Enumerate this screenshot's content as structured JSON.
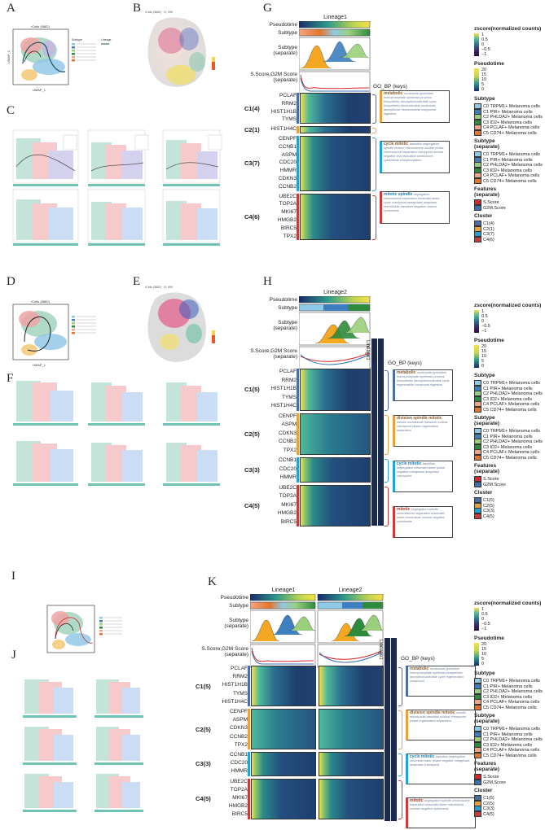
{
  "panels": {
    "A": "A",
    "B": "B",
    "C": "C",
    "D": "D",
    "E": "E",
    "F": "F",
    "G": "G",
    "H": "H",
    "I": "I",
    "J": "J",
    "K": "K"
  },
  "umap": {
    "xlabel": "UMAP_1",
    "ylabel": "UMAP_2",
    "title": "rCells (5882)",
    "subtype_title": "Subtype",
    "lineage_title": "Lineage"
  },
  "heatmap_common": {
    "pseudotime": "Pseudotime",
    "subtype": "Subtype",
    "subtype_sep": "Subtype\n(separate)",
    "score": "S.Score,G2M Score\n(separate)",
    "gobp": "GO_BP (keys)",
    "zscore_title": "zscore(normalized counts)",
    "zscore_ticks": [
      "1",
      "0.5",
      "0",
      "−0.5",
      "−1"
    ],
    "pt_title": "Pseudotime",
    "pt_ticks": [
      "20",
      "15",
      "10",
      "5",
      "0"
    ],
    "subtype_items": [
      "C0 TRPM1+ Melanoma cells",
      "C1 PIR+ Melanoma cells",
      "C2 PHLDA2+ Melanoma cells",
      "C3 ID2+ Melanoma cells",
      "C4 PCLAF+ Melanoma cells",
      "C5 CD74+ Melanoma cells"
    ],
    "subtype_colors": [
      "#8fc9e8",
      "#3e7fc0",
      "#9ad07c",
      "#2e8b3e",
      "#f4a582",
      "#e6742a"
    ],
    "subtype_sep_title": "Subtype\n(separate)",
    "features_title": "Features\n(separate)",
    "features_items": [
      "S.Score",
      "G2M.Score"
    ],
    "features_colors": [
      "#d6282c",
      "#3a6fb4"
    ],
    "cluster_title": "Cluster"
  },
  "G": {
    "lineage": "Lineage1",
    "clusters": [
      {
        "name": "C1(4)",
        "genes": [
          "PCLAF",
          "RRM2",
          "HIST1H1B",
          "TYMS"
        ],
        "color": "#4c6ea8"
      },
      {
        "name": "C2(1)",
        "genes": [
          "HIST1H4C"
        ],
        "color": "#e9a23b"
      },
      {
        "name": "C3(7)",
        "genes": [
          "CENPF",
          "CCNB1",
          "ASPM",
          "CDC20",
          "HMMR",
          "CDKN3",
          "CCNB2"
        ],
        "color": "#23a2d7"
      },
      {
        "name": "C4(6)",
        "genes": [
          "UBE2C",
          "TOP2A",
          "MKI67",
          "HMGB2",
          "BIRC5",
          "TPX2"
        ],
        "color": "#c93a3a"
      }
    ],
    "cluster_items": [
      "C1(4)",
      "C2(1)",
      "C3(7)",
      "C4(6)"
    ],
    "go": [
      {
        "key": "metabolic",
        "words": "nucleoside pyrimidine monophosphate synthesis process biosynthetic deoxyribonucleotide cycle biosynthetic ribonucleotide nucleoside deoxyribose ribonucleotide compound digestive"
      },
      {
        "key": "cycle mitotic",
        "words": "transition segregation spindle division chromosome nuclear phase chromosome separation checkpoint nuclear negative dna replication kinetochore cytokinesis phosphorylation"
      },
      {
        "key": "mitotic spindle",
        "words": "segregation chromosome separation chromatid sister cycle checkpoint metaphase anaphase microtubule transition negative nuclear cytokinesis"
      }
    ]
  },
  "H": {
    "lineage": "Lineage2",
    "side_labels": [
      "Lineage1",
      "Lineage2"
    ],
    "clusters": [
      {
        "name": "C1(5)",
        "genes": [
          "PCLAF",
          "RRM2",
          "HIST1H1B",
          "TYMS",
          "HIST1H4C"
        ],
        "color": "#4c6ea8"
      },
      {
        "name": "C2(5)",
        "genes": [
          "CENPF",
          "ASPM",
          "CDKN3",
          "CCNB2",
          "TPX2"
        ],
        "color": "#e9a23b"
      },
      {
        "name": "C3(3)",
        "genes": [
          "CCNB1",
          "CDC20",
          "HMMR"
        ],
        "color": "#23a2d7"
      },
      {
        "name": "C4(5)",
        "genes": [
          "UBE2C",
          "TOP2A",
          "MKI67",
          "HMGB2",
          "BIRC5"
        ],
        "color": "#c93a3a"
      }
    ],
    "cluster_items": [
      "C1(5)",
      "C2(5)",
      "C3(3)",
      "C4(5)"
    ],
    "go": [
      {
        "key": "metabolic",
        "words": "nucleoside pyrimidine monophosphate synthesis process biosynthetic deoxyribonucleotide cycle regeneration compound digestive"
      },
      {
        "key": "division spindle mitotic",
        "words": "meiotic microtubule transition nuclear checkpoint phase organization separation"
      },
      {
        "key": "cycle mitotic",
        "words": "transition segregation chromatid sister phase negative metaphase anaphase checkpoint"
      },
      {
        "key": "mitotic",
        "words": "segregation spindle chromosome separation chromatid sister microtubule nuclear negative cytokinesis"
      }
    ]
  },
  "K": {
    "lineages": [
      "Lineage1",
      "Lineage2"
    ],
    "side_labels": [
      "Lineage1",
      "Lineage2"
    ],
    "clusters": [
      {
        "name": "C1(5)",
        "genes": [
          "PCLAF",
          "RRM2",
          "HIST1H1B",
          "TYMS",
          "HIST1H4C"
        ],
        "color": "#4c6ea8"
      },
      {
        "name": "C2(5)",
        "genes": [
          "CENPF",
          "ASPM",
          "CDKN3",
          "CCNB2",
          "TPX2"
        ],
        "color": "#e9a23b"
      },
      {
        "name": "C3(3)",
        "genes": [
          "CCNB1",
          "CDC20",
          "HMMR"
        ],
        "color": "#23a2d7"
      },
      {
        "name": "C4(5)",
        "genes": [
          "UBE2C",
          "TOP2A",
          "MKI67",
          "HMGB2",
          "BIRC5"
        ],
        "color": "#c93a3a"
      }
    ],
    "cluster_items": [
      "C1(5)",
      "C2(5)",
      "C3(3)",
      "C4(5)"
    ],
    "go": [
      {
        "key": "metabolic",
        "words": "nucleoside pyrimidine monophosphate synthesis biosynthetic deoxyribonucleotide cycle regeneration compound"
      },
      {
        "key": "division spindle mitotic",
        "words": "meiotic microtubule transition nuclear checkpoint phase organization separation"
      },
      {
        "key": "cycle mitotic",
        "words": "transition segregation chromatid sister phase negative metaphase anaphase checkpoint"
      },
      {
        "key": "mitotic",
        "words": "segregation spindle chromosome separation chromatid sister microtubule nuclear negative cytokinesis"
      }
    ]
  }
}
